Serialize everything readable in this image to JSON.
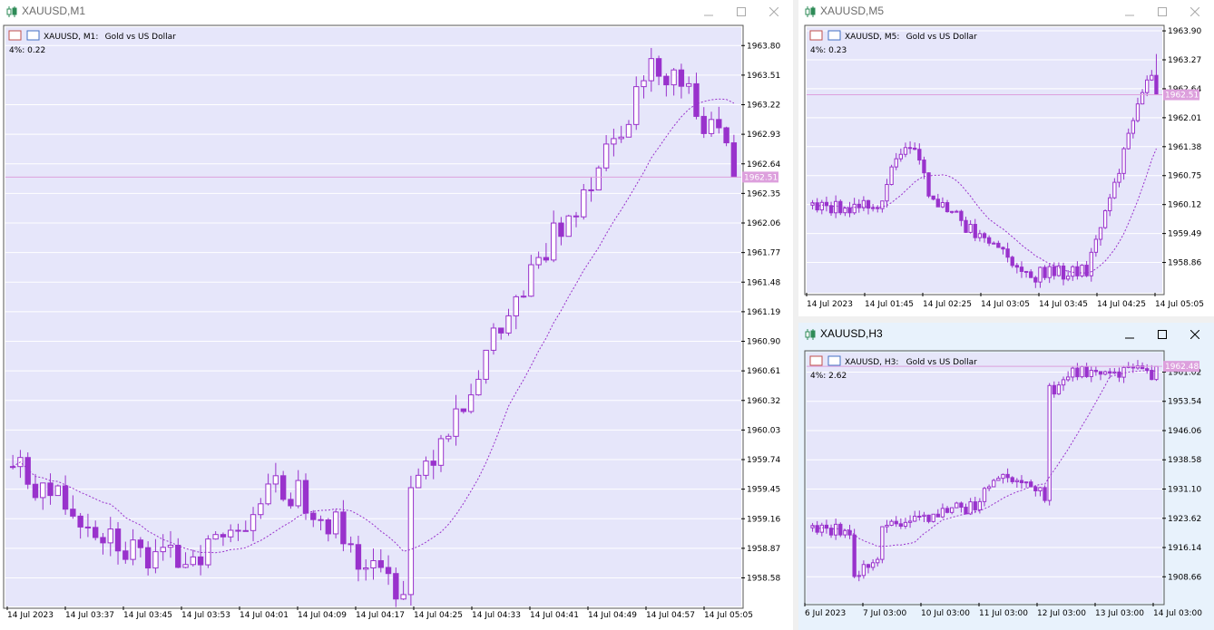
{
  "colors": {
    "plot_bg": "#e6e6fa",
    "grid": "#ffffff",
    "bull": "#ffffff",
    "bear": "#9932cc",
    "wick": "#9932cc",
    "ma": "#9932cc",
    "price_line": "#dda0dd",
    "price_label_bg": "#dda0dd",
    "axis_text": "#000000"
  },
  "windows": [
    {
      "id": "m1",
      "title": "XAUUSD,M1",
      "info_symbol": "XAUUSD, M1:",
      "info_desc": "Gold vs US Dollar",
      "indicator": "4%: 0.22",
      "price_label": "1962.51"
    },
    {
      "id": "m5",
      "title": "XAUUSD,M5",
      "info_symbol": "XAUUSD, M5:",
      "info_desc": "Gold vs US Dollar",
      "indicator": "4%: 0.23",
      "price_label": "1962.51"
    },
    {
      "id": "h3",
      "title": "XAUUSD,H3",
      "info_symbol": "XAUUSD, H3:",
      "info_desc": "Gold vs US Dollar",
      "indicator": "4%: 2.62",
      "price_label": "1962.48"
    }
  ],
  "chart_data": [
    {
      "type": "candlestick",
      "symbol": "XAUUSD",
      "timeframe": "M1",
      "title": "XAUUSD, M1:  Gold vs US Dollar",
      "ylim": [
        1958.3,
        1963.98
      ],
      "y_ticks": [
        "1963.80",
        "1963.51",
        "1963.22",
        "1962.93",
        "1962.64",
        "1962.35",
        "1962.06",
        "1961.77",
        "1961.48",
        "1961.19",
        "1960.90",
        "1960.61",
        "1960.32",
        "1960.03",
        "1959.74",
        "1959.45",
        "1959.16",
        "1958.87",
        "1958.58"
      ],
      "x_ticks": [
        "14 Jul 2023",
        "14 Jul 03:37",
        "14 Jul 03:45",
        "14 Jul 03:53",
        "14 Jul 04:01",
        "14 Jul 04:09",
        "14 Jul 04:17",
        "14 Jul 04:25",
        "14 Jul 04:33",
        "14 Jul 04:41",
        "14 Jul 04:49",
        "14 Jul 04:57",
        "14 Jul 05:05"
      ],
      "current_price": 1962.51,
      "ma_start": [
        3,
        1959.65
      ],
      "ma_end": [
        120,
        1962.93
      ],
      "closes": [
        1959.7,
        1959.5,
        1959.8,
        1959.5,
        1959.6,
        1959.4,
        1959.5,
        1959.1,
        1959.3,
        1959.5,
        1959.1,
        1958.9,
        1959.1,
        1959.0,
        1959.4,
        1958.9,
        1958.8,
        1958.6,
        1958.5,
        1958.6,
        1958.7,
        1958.9,
        1958.8,
        1958.9,
        1959.0,
        1959.2,
        1959.1,
        1959.4,
        1959.2,
        1959.5,
        1959.3,
        1959.5,
        1959.4,
        1959.0,
        1958.8,
        1958.7,
        1959.0,
        1958.9,
        1958.8,
        1958.7,
        1959.0,
        1959.2,
        1959.1,
        1958.9,
        1959.0,
        1959.3,
        1959.6,
        1959.8,
        1959.4,
        1959.1,
        1959.2,
        1959.3,
        1959.2,
        1959.4,
        1959.9,
        1960.2,
        1960.7,
        1960.9,
        1960.8,
        1960.6,
        1960.8,
        1960.5,
        1960.7,
        1960.9,
        1961.0,
        1960.9,
        1961.1,
        1961.5,
        1961.3,
        1961.3,
        1961.4,
        1961.7,
        1961.9,
        1962.3,
        1962.2,
        1962.5,
        1962.5,
        1962.4,
        1962.6,
        1962.9,
        1962.3,
        1962.6,
        1962.7,
        1963.1,
        1963.0,
        1963.1,
        1962.8,
        1962.9,
        1962.8,
        1963.1,
        1963.3,
        1963.6,
        1963.2,
        1962.9,
        1962.8,
        1962.6,
        1962.51
      ],
      "ohlc_note": "approximate closes read from candles; full series rendered"
    },
    {
      "type": "candlestick",
      "symbol": "XAUUSD",
      "timeframe": "M5",
      "title": "XAUUSD, M5:  Gold vs US Dollar",
      "ylim": [
        1958.2,
        1963.98
      ],
      "y_ticks": [
        "1963.90",
        "1963.27",
        "1962.64",
        "1962.01",
        "1961.38",
        "1960.75",
        "1960.12",
        "1959.49",
        "1958.86"
      ],
      "x_ticks": [
        "14 Jul 2023",
        "14 Jul 01:45",
        "14 Jul 02:25",
        "14 Jul 03:05",
        "14 Jul 03:45",
        "14 Jul 04:25",
        "14 Jul 05:05"
      ],
      "current_price": 1962.51
    },
    {
      "type": "candlestick",
      "symbol": "XAUUSD",
      "timeframe": "H3",
      "title": "XAUUSD, H3:  Gold vs US Dollar",
      "ylim": [
        1902.0,
        1966.0
      ],
      "y_ticks": [
        "1961.02",
        "1953.54",
        "1946.06",
        "1938.58",
        "1931.10",
        "1923.62",
        "1916.14",
        "1908.66"
      ],
      "x_ticks": [
        "6 Jul 2023",
        "7 Jul 03:00",
        "10 Jul 03:00",
        "11 Jul 03:00",
        "12 Jul 03:00",
        "13 Jul 03:00",
        "14 Jul 03:00"
      ],
      "current_price": 1962.48
    }
  ]
}
